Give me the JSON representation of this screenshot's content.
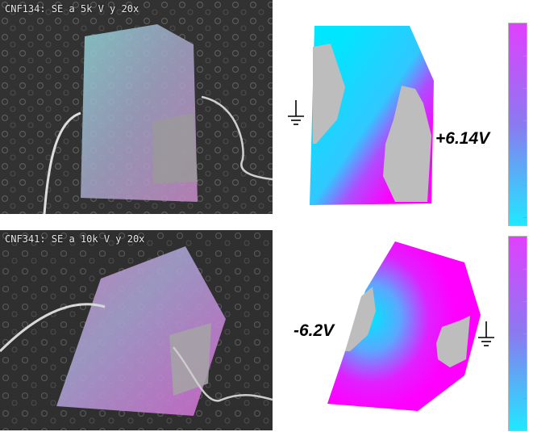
{
  "panels": {
    "top": {
      "caption": "CNF134: SE a 5k V y 20x",
      "voltage": "+6.14V",
      "ground_symbol": "ground-icon"
    },
    "bottom": {
      "caption": "CNF341: SE a 10k V y 20x",
      "voltage": "-6.2V",
      "ground_symbol": "ground-icon"
    }
  },
  "colors": {
    "cyan": "#00e8ff",
    "magenta": "#ff00ff",
    "grey_region": "#bdbdbd",
    "colorbar_top": "#e040ff",
    "colorbar_bottom": "#20e8ff"
  }
}
